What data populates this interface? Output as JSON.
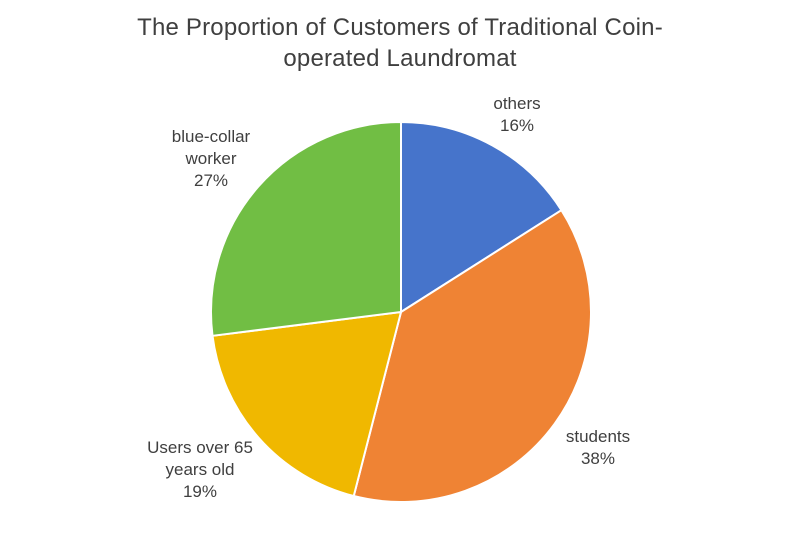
{
  "chart_data": {
    "type": "pie",
    "title": "The Proportion of Customers of Traditional Coin-\noperated Laundromat",
    "legend": "none",
    "labels_position": "outside, category name with percentage",
    "start_angle_deg": 0,
    "direction": "clockwise",
    "categories": [
      "others",
      "students",
      "Users over 65 years old",
      "blue-collar worker"
    ],
    "values": [
      16,
      38,
      19,
      27
    ],
    "slices": [
      {
        "name": "others",
        "label": "others",
        "percent_label": "16%",
        "value": 16,
        "color": "#4674CB"
      },
      {
        "name": "students",
        "label": "students",
        "percent_label": "38%",
        "value": 38,
        "color": "#EF8334"
      },
      {
        "name": "users-over-65",
        "label": "Users over 65\nyears old",
        "percent_label": "19%",
        "value": 19,
        "color": "#F0B800"
      },
      {
        "name": "blue-collar-worker",
        "label": "blue-collar\nworker",
        "percent_label": "27%",
        "value": 27,
        "color": "#71BE44"
      }
    ],
    "colors": {
      "title_text": "#3f3f3f",
      "label_text": "#3f3f3f",
      "slice_separator": "#ffffff",
      "background": "#ffffff"
    }
  }
}
